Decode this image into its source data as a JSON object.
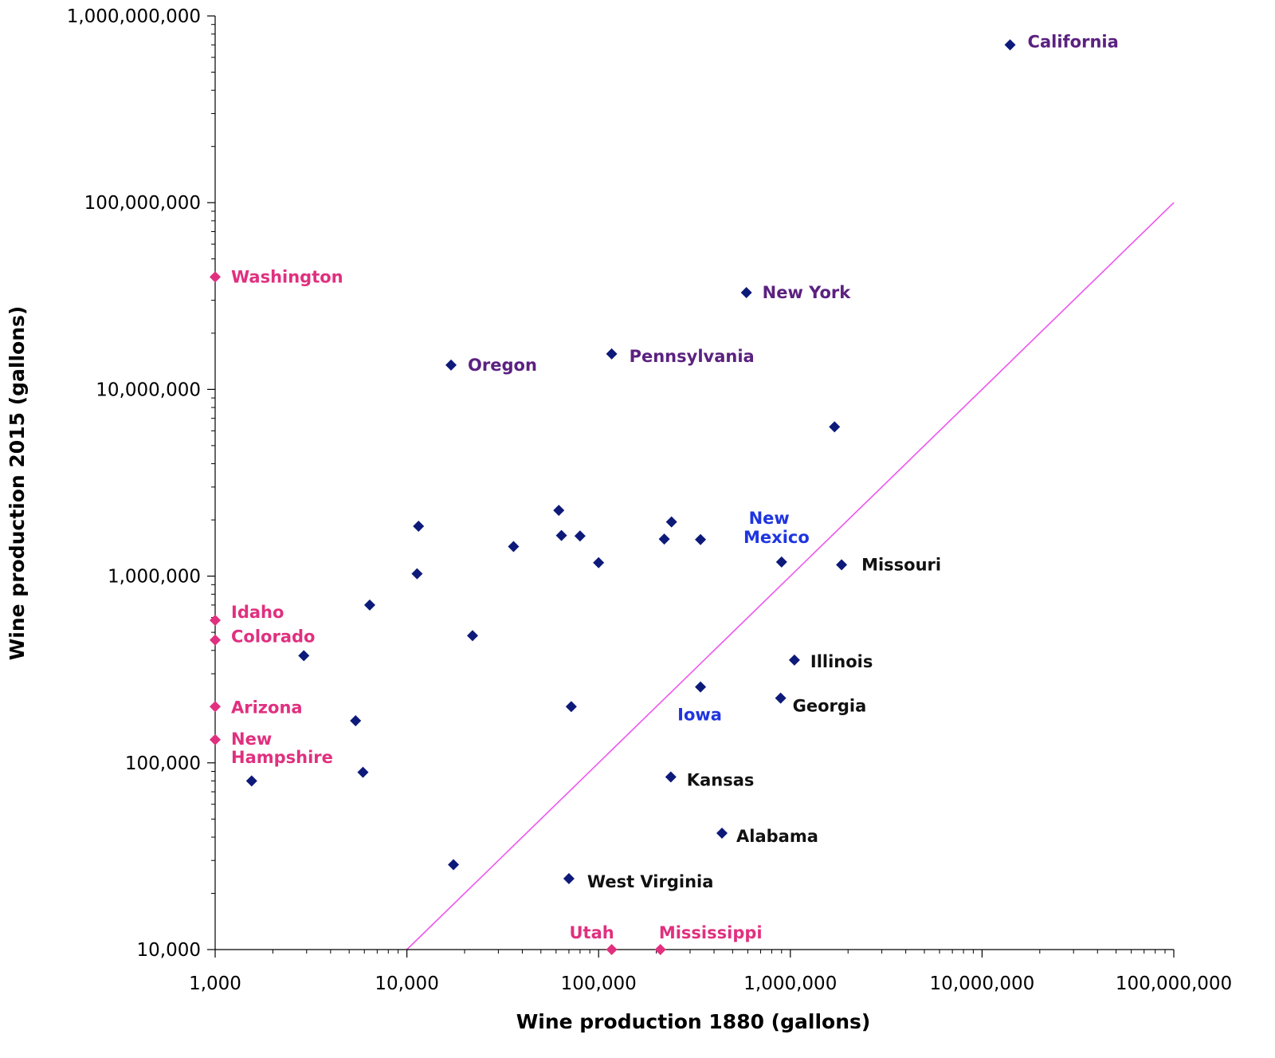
{
  "chart_data": {
    "type": "scatter",
    "xlabel": "Wine production 1880 (gallons)",
    "ylabel": "Wine production 2015 (gallons)",
    "xscale": "log",
    "yscale": "log",
    "xlim": [
      1000,
      100000000
    ],
    "ylim": [
      10000,
      1000000000
    ],
    "x_ticks": [
      {
        "value": 1000,
        "label": "1,000"
      },
      {
        "value": 10000,
        "label": "10,000"
      },
      {
        "value": 100000,
        "label": "100,000"
      },
      {
        "value": 1000000,
        "label": "1,000,000"
      },
      {
        "value": 10000000,
        "label": "10,000,000"
      },
      {
        "value": 100000000,
        "label": "100,000,000"
      }
    ],
    "y_ticks": [
      {
        "value": 10000,
        "label": "10,000"
      },
      {
        "value": 100000,
        "label": "100,000"
      },
      {
        "value": 1000000,
        "label": "1,000,000"
      },
      {
        "value": 10000000,
        "label": "10,000,000"
      },
      {
        "value": 100000000,
        "label": "100,000,000"
      },
      {
        "value": 1000000000,
        "label": "1,000,000,000"
      }
    ],
    "grid": false,
    "reference_line": {
      "from": [
        10000,
        10000
      ],
      "to": [
        100000000,
        100000000
      ],
      "color": "#ee55ee"
    },
    "colors": {
      "point": "#0d1a7a",
      "zero_point": "#e0307f",
      "label_purple": "#5b2180",
      "label_black": "#111111",
      "label_blue": "#1f35e0",
      "label_pink": "#e0307f"
    },
    "points": [
      {
        "x": 14000000,
        "y": 700000000,
        "label": "California",
        "color": "purple"
      },
      {
        "x": 590000,
        "y": 33000000,
        "label": "New York",
        "color": "purple"
      },
      {
        "x": 117000,
        "y": 15500000,
        "label": "Pennsylvania",
        "color": "purple"
      },
      {
        "x": 17000,
        "y": 13500000,
        "label": "Oregon",
        "color": "purple"
      },
      {
        "x": 1700000,
        "y": 6300000
      },
      {
        "x": 62000,
        "y": 2250000
      },
      {
        "x": 240000,
        "y": 1950000
      },
      {
        "x": 11500,
        "y": 1850000
      },
      {
        "x": 64000,
        "y": 1650000
      },
      {
        "x": 80000,
        "y": 1640000
      },
      {
        "x": 220000,
        "y": 1580000
      },
      {
        "x": 340000,
        "y": 1570000
      },
      {
        "x": 36000,
        "y": 1440000
      },
      {
        "x": 100000,
        "y": 1180000
      },
      {
        "x": 900000,
        "y": 1190000,
        "label": "New Mexico",
        "color": "blue"
      },
      {
        "x": 1850000,
        "y": 1150000,
        "label": "Missouri",
        "color": "black"
      },
      {
        "x": 11300,
        "y": 1030000
      },
      {
        "x": 6400,
        "y": 700000
      },
      {
        "x": 22000,
        "y": 480000
      },
      {
        "x": 2900,
        "y": 375000
      },
      {
        "x": 1050000,
        "y": 355000,
        "label": "Illinois",
        "color": "black"
      },
      {
        "x": 340000,
        "y": 255000,
        "label": "Iowa",
        "color": "blue"
      },
      {
        "x": 890000,
        "y": 222000,
        "label": "Georgia",
        "color": "black"
      },
      {
        "x": 72000,
        "y": 200000
      },
      {
        "x": 5400,
        "y": 168000
      },
      {
        "x": 5900,
        "y": 89000
      },
      {
        "x": 1550,
        "y": 80000
      },
      {
        "x": 238000,
        "y": 84000,
        "label": "Kansas",
        "color": "black"
      },
      {
        "x": 440000,
        "y": 42000,
        "label": "Alabama",
        "color": "black"
      },
      {
        "x": 17500,
        "y": 28500
      },
      {
        "x": 70000,
        "y": 24000,
        "label": "West Virginia",
        "color": "black"
      },
      {
        "x": 1000,
        "y": 40000000,
        "label": "Washington",
        "color": "pink",
        "zero": true
      },
      {
        "x": 1000,
        "y": 580000,
        "label": "Idaho",
        "color": "pink",
        "zero": true
      },
      {
        "x": 1000,
        "y": 455000,
        "label": "Colorado",
        "color": "pink",
        "zero": true
      },
      {
        "x": 1000,
        "y": 200000,
        "label": "Arizona",
        "color": "pink",
        "zero": true
      },
      {
        "x": 1000,
        "y": 133000,
        "label": "New Hampshire",
        "color": "pink",
        "zero": true
      },
      {
        "x": 117000,
        "y": 10000,
        "label": "Utah",
        "color": "pink",
        "zero": true
      },
      {
        "x": 210000,
        "y": 10000,
        "label": "Mississippi",
        "color": "pink",
        "zero": true
      }
    ]
  }
}
